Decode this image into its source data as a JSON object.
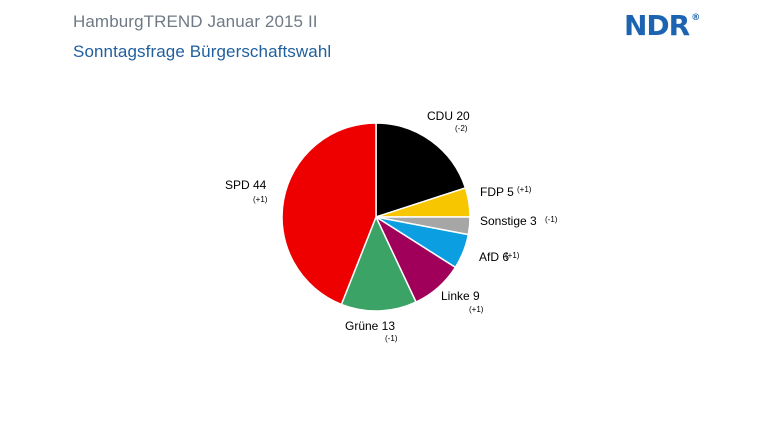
{
  "header": {
    "title": "HamburgTREND Januar 2015 II",
    "subtitle": "Sonntagsfrage Bürgerschaftswahl",
    "logo": "NDR",
    "logo_mark": "®"
  },
  "chart_data": {
    "type": "pie",
    "title": "Sonntagsfrage Bürgerschaftswahl",
    "start_angle_deg": 0,
    "direction": "clockwise",
    "slices": [
      {
        "label": "CDU",
        "value": 20,
        "change": "(-2)",
        "color": "#000000"
      },
      {
        "label": "FDP",
        "value": 5,
        "change": "(+1)",
        "color": "#f7c600"
      },
      {
        "label": "Sonstige",
        "value": 3,
        "change": "(-1)",
        "color": "#a6a6a6"
      },
      {
        "label": "AfD",
        "value": 6,
        "change": "(+1)",
        "color": "#0b9ee0"
      },
      {
        "label": "Linke",
        "value": 9,
        "change": "(+1)",
        "color": "#a0005a"
      },
      {
        "label": "Grüne",
        "value": 13,
        "change": "(-1)",
        "color": "#3aa365"
      },
      {
        "label": "SPD",
        "value": 44,
        "change": "(+1)",
        "color": "#ee0000"
      }
    ]
  }
}
